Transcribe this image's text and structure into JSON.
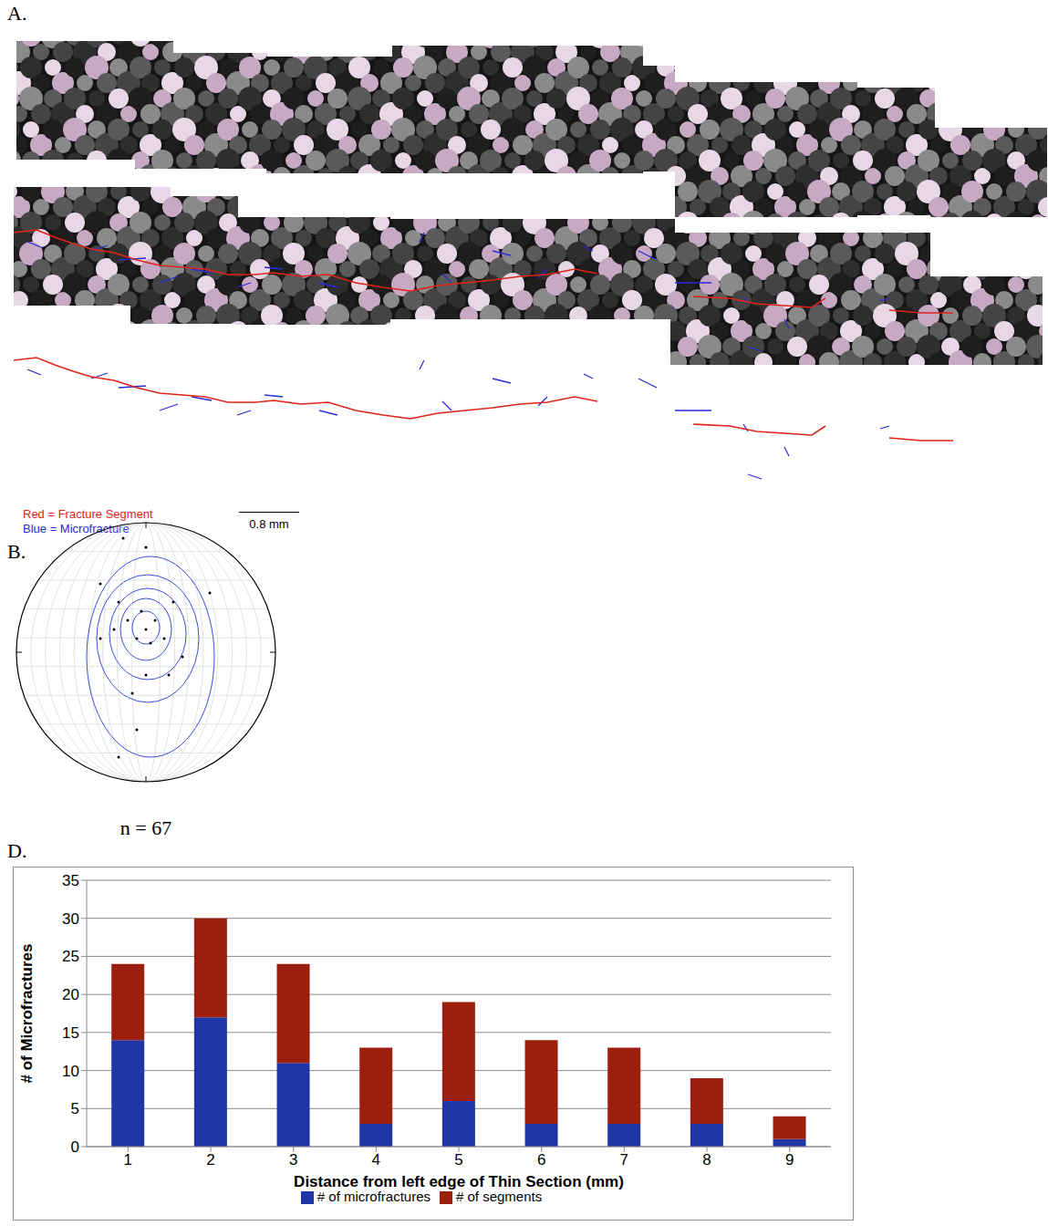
{
  "panels": {
    "A": {
      "label": "A.",
      "legend": [
        {
          "text": "Red = Fracture Segment",
          "color": "#e0241b"
        },
        {
          "text": "Blue = Microfracture",
          "color": "#2a2ad8"
        }
      ],
      "scale_bar": "0.8 mm"
    },
    "B": {
      "label": "B.",
      "caption": "n = 67"
    },
    "D": {
      "label": "D."
    }
  },
  "chart_data": {
    "type": "bar",
    "stacked": true,
    "grid": true,
    "legend": "bottom",
    "x_label": "Distance from left edge of Thin Section (mm)",
    "y_label": "# of Microfractures",
    "categories": [
      "1",
      "2",
      "3",
      "4",
      "5",
      "6",
      "7",
      "8",
      "9"
    ],
    "series": [
      {
        "name": "# of microfractures",
        "color": "#2035a6",
        "values": [
          14,
          17,
          11,
          3,
          6,
          3,
          3,
          3,
          1
        ]
      },
      {
        "name": "# of segments",
        "color": "#9c1f0e",
        "values": [
          10,
          13,
          13,
          10,
          13,
          11,
          10,
          6,
          3
        ]
      }
    ],
    "ylim": [
      0,
      35
    ],
    "yticks": [
      0,
      5,
      10,
      15,
      20,
      25,
      30,
      35
    ]
  }
}
